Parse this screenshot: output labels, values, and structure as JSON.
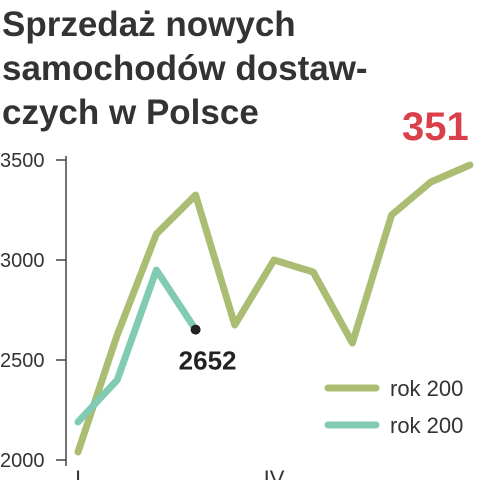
{
  "chart_data": {
    "type": "line",
    "title": [
      "Sprzedaż nowych",
      "samochodów dostaw-",
      "czych w Polsce"
    ],
    "annotation": "351",
    "categories": [
      "I",
      null,
      null,
      null,
      null,
      "IV",
      null,
      null,
      null,
      null,
      null
    ],
    "series": [
      {
        "name": "rok 200",
        "color": "#abbd73",
        "values": [
          2040,
          2625,
          3130,
          3325,
          2675,
          3000,
          2940,
          2585,
          3225,
          3390,
          3475
        ]
      },
      {
        "name": "rok 200",
        "color": "#80cbb1",
        "values": [
          2190,
          2400,
          2950,
          2652,
          null,
          null,
          null,
          null,
          null,
          null,
          null
        ],
        "value_labels": [
          null,
          null,
          null,
          "2652",
          null,
          null,
          null,
          null,
          null,
          null,
          null
        ]
      }
    ],
    "ylim": [
      2000,
      3500
    ],
    "yticks": [
      2000,
      2500,
      3000,
      3500
    ],
    "legend": "lower right"
  }
}
